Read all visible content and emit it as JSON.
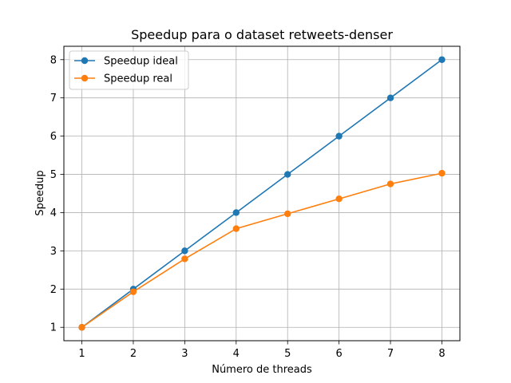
{
  "chart_data": {
    "type": "line",
    "title": "Speedup para o dataset retweets-denser",
    "xlabel": "Número de threads",
    "ylabel": "Speedup",
    "x": [
      1,
      2,
      3,
      4,
      5,
      6,
      7,
      8
    ],
    "xticks": [
      "1",
      "2",
      "3",
      "4",
      "5",
      "6",
      "7",
      "8"
    ],
    "yticks": [
      "1",
      "2",
      "3",
      "4",
      "5",
      "6",
      "7",
      "8"
    ],
    "xlim": [
      0.65,
      8.35
    ],
    "ylim": [
      0.65,
      8.35
    ],
    "grid": true,
    "legend_position": "top-left",
    "series": [
      {
        "name": "Speedup ideal",
        "color": "#1f77b4",
        "values": [
          1,
          2,
          3,
          4,
          5,
          6,
          7,
          8
        ]
      },
      {
        "name": "Speedup real",
        "color": "#ff7f0e",
        "values": [
          1.0,
          1.93,
          2.79,
          3.58,
          3.97,
          4.36,
          4.75,
          5.03
        ]
      }
    ]
  }
}
